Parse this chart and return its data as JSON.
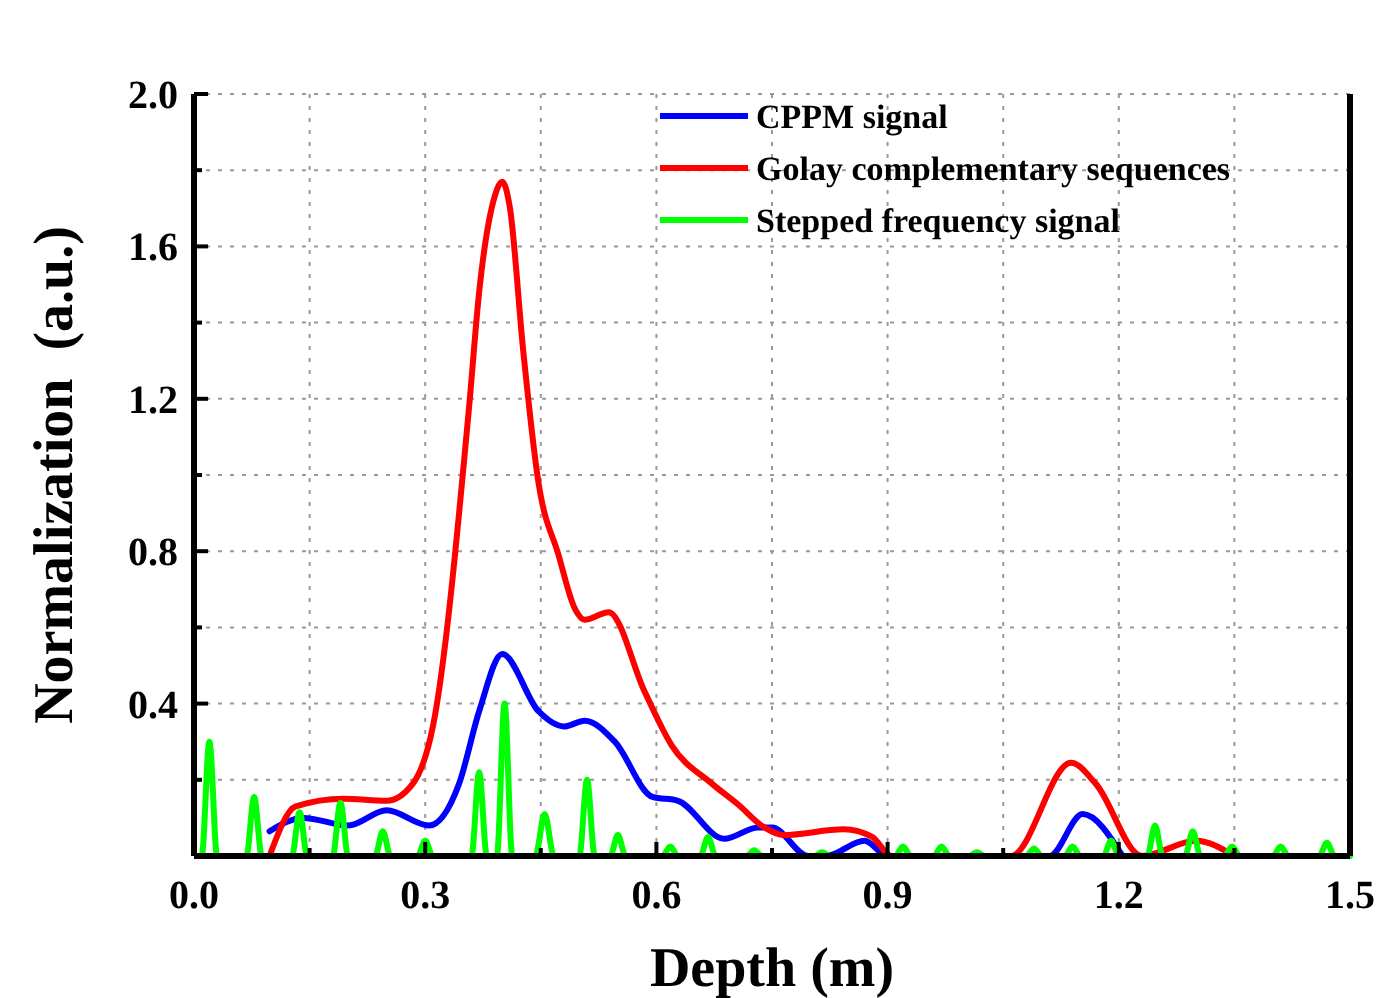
{
  "chart_data": {
    "type": "line",
    "xlabel": "Depth (m)",
    "ylabel": "Normalization  (a.u.)",
    "xlim": [
      0,
      1.5
    ],
    "ylim": [
      0,
      2.0
    ],
    "xticks": [
      {
        "value": 0,
        "label": "0.0"
      },
      {
        "value": 0.15,
        "label": null
      },
      0.3,
      {
        "value": 0.45,
        "label": null
      },
      0.6,
      {
        "value": 0.75,
        "label": null
      },
      0.9,
      {
        "value": 1.05,
        "label": null
      },
      1.2,
      {
        "value": 1.35,
        "label": null
      },
      1.5
    ],
    "yticks": [
      {
        "value": 0.2,
        "label": null
      },
      0.4,
      {
        "value": 0.6,
        "label": null
      },
      0.8,
      {
        "value": 1.0,
        "label": null
      },
      1.2,
      {
        "value": 1.4,
        "label": null
      },
      1.6,
      {
        "value": 1.8,
        "label": null
      },
      {
        "value": 2.0,
        "label": "2.0"
      }
    ],
    "grid": true,
    "legend": "top right",
    "line_style": "solid",
    "marker": "none",
    "series": [
      {
        "name": "CPPM signal",
        "color": "#0000ff",
        "x": [
          0.098,
          0.142,
          0.2,
          0.25,
          0.305,
          0.344,
          0.37,
          0.4,
          0.447,
          0.48,
          0.507,
          0.546,
          0.595,
          0.628,
          0.688,
          0.732,
          0.75,
          0.797,
          0.82,
          0.87,
          0.9,
          1.11,
          1.153,
          1.205
        ],
        "values": [
          0.065,
          0.1,
          0.08,
          0.12,
          0.08,
          0.19,
          0.38,
          0.53,
          0.38,
          0.34,
          0.355,
          0.3,
          0.155,
          0.145,
          0.045,
          0.075,
          0.075,
          0,
          0,
          0.04,
          0,
          0,
          0.11,
          0
        ]
      },
      {
        "name": "Golay complementary sequences",
        "color": "#ff0000",
        "x": [
          0.098,
          0.132,
          0.194,
          0.25,
          0.284,
          0.31,
          0.357,
          0.37,
          0.39,
          0.4,
          0.41,
          0.427,
          0.447,
          0.473,
          0.494,
          0.507,
          0.538,
          0.585,
          0.62,
          0.672,
          0.706,
          0.74,
          0.765,
          0.843,
          0.88,
          0.905,
          1.06,
          1.138,
          1.17,
          1.23,
          1.3,
          1.35
        ],
        "values": [
          0,
          0.13,
          0.15,
          0.145,
          0.19,
          0.34,
          1.18,
          1.48,
          1.73,
          1.77,
          1.7,
          1.33,
          0.98,
          0.79,
          0.65,
          0.62,
          0.64,
          0.43,
          0.29,
          0.19,
          0.135,
          0.075,
          0.055,
          0.07,
          0.05,
          0,
          0,
          0.245,
          0.19,
          0,
          0.04,
          0
        ]
      },
      {
        "name": "Stepped frequency signal",
        "color": "#00ff00",
        "x": [
          0.005,
          0.01,
          0.02,
          0.03,
          0.068,
          0.078,
          0.088,
          0.127,
          0.137,
          0.147,
          0.18,
          0.19,
          0.2,
          0.235,
          0.245,
          0.255,
          0.29,
          0.3,
          0.31,
          0.36,
          0.37,
          0.38,
          0.393,
          0.403,
          0.413,
          0.443,
          0.455,
          0.467,
          0.5,
          0.51,
          0.52,
          0.54,
          0.55,
          0.56,
          0.608,
          0.618,
          0.628,
          0.657,
          0.667,
          0.677,
          0.717,
          0.727,
          0.737,
          0.805,
          0.815,
          0.825,
          0.91,
          0.92,
          0.93,
          0.96,
          0.97,
          0.98,
          1.006,
          1.016,
          1.026,
          1.08,
          1.09,
          1.1,
          1.13,
          1.14,
          1.15,
          1.18,
          1.19,
          1.2,
          1.237,
          1.247,
          1.257,
          1.286,
          1.296,
          1.306,
          1.337,
          1.347,
          1.357,
          1.4,
          1.41,
          1.42,
          1.46,
          1.47,
          1.48,
          1.5
        ],
        "values": [
          0,
          0,
          0.3,
          0,
          0,
          0.155,
          0,
          0,
          0.115,
          0,
          0,
          0.14,
          0,
          0,
          0.065,
          0,
          0,
          0.04,
          0,
          0,
          0.22,
          0,
          0,
          0.4,
          0,
          0,
          0.11,
          0,
          0,
          0.2,
          0,
          0,
          0.055,
          0,
          0,
          0.025,
          0,
          0,
          0.05,
          0,
          0,
          0.015,
          0,
          0,
          0.01,
          0,
          0,
          0.025,
          0,
          0,
          0.025,
          0,
          0,
          0.01,
          0,
          0,
          0.02,
          0,
          0,
          0.025,
          0,
          0,
          0.04,
          0,
          0,
          0.08,
          0,
          0,
          0.065,
          0,
          0,
          0.025,
          0,
          0,
          0.025,
          0,
          0,
          0.035,
          0,
          0
        ]
      }
    ]
  }
}
